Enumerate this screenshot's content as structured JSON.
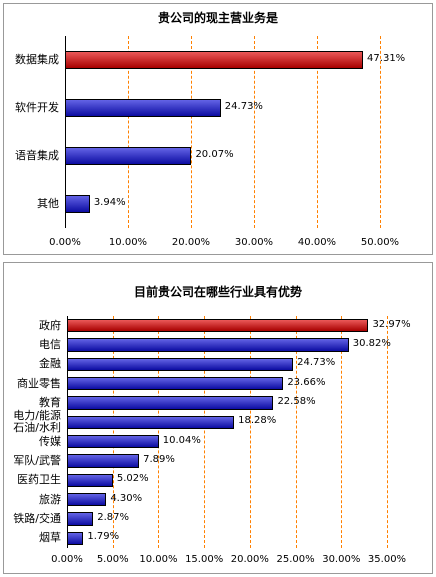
{
  "chart_data": [
    {
      "type": "bar",
      "orientation": "horizontal",
      "title": "贵公司的现主营业务是",
      "categories": [
        "数据集成",
        "软件开发",
        "语音集成",
        "其他"
      ],
      "values": [
        47.31,
        24.73,
        20.07,
        3.94
      ],
      "value_labels": [
        "47.31%",
        "24.73%",
        "20.07%",
        "3.94%"
      ],
      "colors": [
        "#e00000",
        "#1010d8",
        "#1010d8",
        "#1010d8"
      ],
      "xlim": [
        0,
        50
      ],
      "xticks": [
        {
          "value": 0,
          "label": "0.00%"
        },
        {
          "value": 10,
          "label": "10.00%"
        },
        {
          "value": 20,
          "label": "20.00%"
        },
        {
          "value": 30,
          "label": "30.00%"
        },
        {
          "value": 40,
          "label": "40.00%"
        },
        {
          "value": 50,
          "label": "50.00%"
        }
      ],
      "grid": true,
      "grid_color": "#ff8000"
    },
    {
      "type": "bar",
      "orientation": "horizontal",
      "title": "目前贵公司在哪些行业具有优势",
      "categories": [
        "政府",
        "电信",
        "金融",
        "商业零售",
        "教育",
        "电力/能源\n石油/水利",
        "传媒",
        "军队/武警",
        "医药卫生",
        "旅游",
        "铁路/交通",
        "烟草"
      ],
      "values": [
        32.97,
        30.82,
        24.73,
        23.66,
        22.58,
        18.28,
        10.04,
        7.89,
        5.02,
        4.3,
        2.87,
        1.79
      ],
      "value_labels": [
        "32.97%",
        "30.82%",
        "24.73%",
        "23.66%",
        "22.58%",
        "18.28%",
        "10.04%",
        "7.89%",
        "5.02%",
        "4.30%",
        "2.87%",
        "1.79%"
      ],
      "colors": [
        "#e00000",
        "#1010d8",
        "#1010d8",
        "#1010d8",
        "#1010d8",
        "#1010d8",
        "#1010d8",
        "#1010d8",
        "#1010d8",
        "#1010d8",
        "#1010d8",
        "#1010d8"
      ],
      "xlim": [
        0,
        35
      ],
      "xticks": [
        {
          "value": 0,
          "label": "0.00%"
        },
        {
          "value": 5,
          "label": "5.00%"
        },
        {
          "value": 10,
          "label": "10.00%"
        },
        {
          "value": 15,
          "label": "15.00%"
        },
        {
          "value": 20,
          "label": "20.00%"
        },
        {
          "value": 25,
          "label": "25.00%"
        },
        {
          "value": 30,
          "label": "30.00%"
        },
        {
          "value": 35,
          "label": "35.00%"
        }
      ],
      "grid": true,
      "grid_color": "#ff8000"
    }
  ]
}
